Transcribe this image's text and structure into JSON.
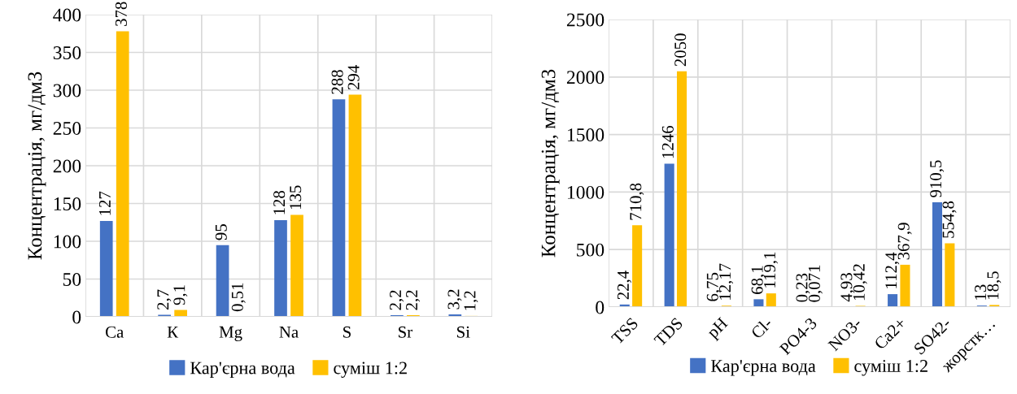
{
  "chart_data": [
    {
      "type": "bar",
      "ylabel": "Концентрація, мг/дм3",
      "categories": [
        "Ca",
        "К",
        "Mg",
        "Na",
        "S",
        "Sr",
        "Si"
      ],
      "ylim": [
        0,
        400
      ],
      "yticks": [
        0,
        50,
        100,
        150,
        200,
        250,
        300,
        350,
        400
      ],
      "grid": true,
      "legend": "bottom",
      "series": [
        {
          "name": "Кар'єрна вода",
          "color": "#4472c4",
          "values": [
            127,
            2.7,
            95,
            128,
            288,
            2.2,
            3.2
          ],
          "value_labels": [
            "127",
            "2,7",
            "95",
            "128",
            "288",
            "2,2",
            "3,2"
          ]
        },
        {
          "name": "суміш 1:2",
          "color": "#ffc000",
          "values": [
            378,
            9.1,
            0.51,
            135,
            294,
            2.2,
            1.2
          ],
          "value_labels": [
            "378",
            "9,1",
            "0,51",
            "135",
            "294",
            "2,2",
            "1,2"
          ]
        }
      ]
    },
    {
      "type": "bar",
      "ylabel": "Концентрація, мг/дм3",
      "categories": [
        "TSS",
        "TDS",
        "pH",
        "Cl-",
        "PO4-3",
        "NO3-",
        "Ca2+",
        "SO42-",
        "жорстк…"
      ],
      "ylim": [
        0,
        2500
      ],
      "yticks": [
        0,
        500,
        1000,
        1500,
        2000,
        2500
      ],
      "grid": true,
      "legend": "bottom",
      "series": [
        {
          "name": "Кар'єрна вода",
          "color": "#4472c4",
          "values": [
            22.4,
            1246,
            6.75,
            68.1,
            0.23,
            4.93,
            112.4,
            910.5,
            13
          ],
          "value_labels": [
            "22,4",
            "1246",
            "6,75",
            "68,1",
            "0,23",
            "4,93",
            "112,4",
            "910,5",
            "13"
          ]
        },
        {
          "name": "суміш 1:2",
          "color": "#ffc000",
          "values": [
            710.8,
            2050,
            12.17,
            119.1,
            0.071,
            10.42,
            367.9,
            554.8,
            18.5
          ],
          "value_labels": [
            "710,8",
            "2050",
            "12,17",
            "119,1",
            "0,071",
            "10,42",
            "367,9",
            "554,8",
            "18,5"
          ]
        }
      ]
    }
  ]
}
